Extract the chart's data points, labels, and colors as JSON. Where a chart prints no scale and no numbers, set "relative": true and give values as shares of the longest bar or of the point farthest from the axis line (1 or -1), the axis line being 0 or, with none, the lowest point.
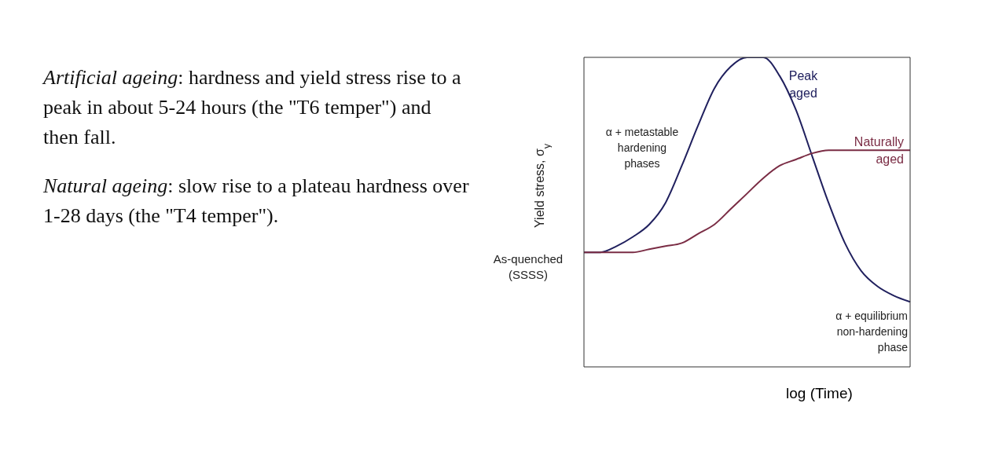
{
  "chart_data": {
    "type": "line",
    "relative": true,
    "xlabel": "log (Time)",
    "ylabel": "Yield stress, σ$_{y}$",
    "categories": [
      null,
      null,
      null,
      null,
      null,
      null,
      null,
      null,
      null,
      null,
      null,
      null,
      null,
      null,
      null,
      null,
      null,
      null,
      null,
      null,
      null
    ],
    "series": [
      {
        "name": "Peak\naged",
        "color": "#20205e",
        "values": [
          0.37,
          0.37,
          0.39,
          0.42,
          0.46,
          0.53,
          0.65,
          0.78,
          0.9,
          0.97,
          1,
          1,
          0.94,
          0.83,
          0.68,
          0.53,
          0.4,
          0.31,
          0.26,
          0.23,
          0.21
        ]
      },
      {
        "name": "Naturally\naged",
        "color": "#7a2c44",
        "values": [
          0.37,
          0.37,
          0.37,
          0.37,
          0.38,
          0.39,
          0.4,
          0.43,
          0.46,
          0.51,
          0.56,
          0.61,
          0.65,
          0.67,
          0.69,
          0.7,
          0.7,
          0.7,
          0.7,
          0.7,
          0.7
        ]
      }
    ],
    "annotations": [
      "Artificial ageing: hardness and yield stress rise to a peak in about 5-24 hours (the \"T6 temper\") and then fall.",
      "Natural ageing: slow rise to a plateau hardness over 1-28 days (the \"T4 temper\").",
      "α + metastable\nhardening\nphases",
      "As-quenched\n(SSSS)",
      "α + equilibrium\nnon-hardening\nphase"
    ],
    "marker": "none",
    "line_style": "solid",
    "legend": false,
    "grid": false
  }
}
